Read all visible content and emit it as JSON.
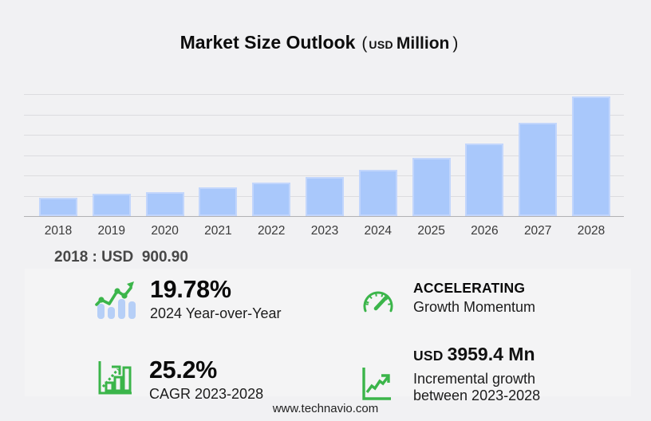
{
  "title": {
    "main": "Market Size Outlook",
    "open_paren": "(",
    "currency": "USD",
    "unit": "Million",
    "close_paren": ")"
  },
  "chart_data": {
    "type": "bar",
    "title": "Market Size Outlook (USD Million)",
    "xlabel": "",
    "ylabel": "",
    "unit": "USD Million",
    "categories": [
      "2018",
      "2019",
      "2020",
      "2021",
      "2022",
      "2023",
      "2024",
      "2025",
      "2026",
      "2027",
      "2028"
    ],
    "values": [
      900.9,
      1085,
      1180,
      1425,
      1655,
      1907,
      2284,
      2860,
      3548,
      4560,
      5866
    ],
    "ylim": [
      0,
      6100
    ],
    "grid": "horizontal",
    "gridline_count": 7,
    "legend": "none",
    "annotation": "2018 : USD  900.90"
  },
  "stats": [
    {
      "icon": "growth-trend-icon",
      "value": "19.78%",
      "label": "2024 Year-over-Year"
    },
    {
      "icon": "speedometer-icon",
      "value": "ACCELERATING",
      "label": "Growth Momentum"
    },
    {
      "icon": "cagr-chart-icon",
      "value": "25.2%",
      "label": "CAGR 2023-2028"
    },
    {
      "icon": "incremental-growth-icon",
      "value_prefix": "USD",
      "value": "3959.4 Mn",
      "label_line1": "Incremental growth",
      "label_line2": "between 2023-2028"
    }
  ],
  "footer": {
    "website": "www.technavio.com"
  },
  "colors": {
    "background": "#f1f1f3",
    "panel": "#f4f4f5",
    "bar": "#a9c8fb",
    "bar_edge": "#c2d6fc",
    "gridline": "#dcdcdf",
    "axis_line": "#b1b1b4",
    "accent_green": "#3bb54a",
    "icon_bar_blue": "#b6cff7"
  }
}
